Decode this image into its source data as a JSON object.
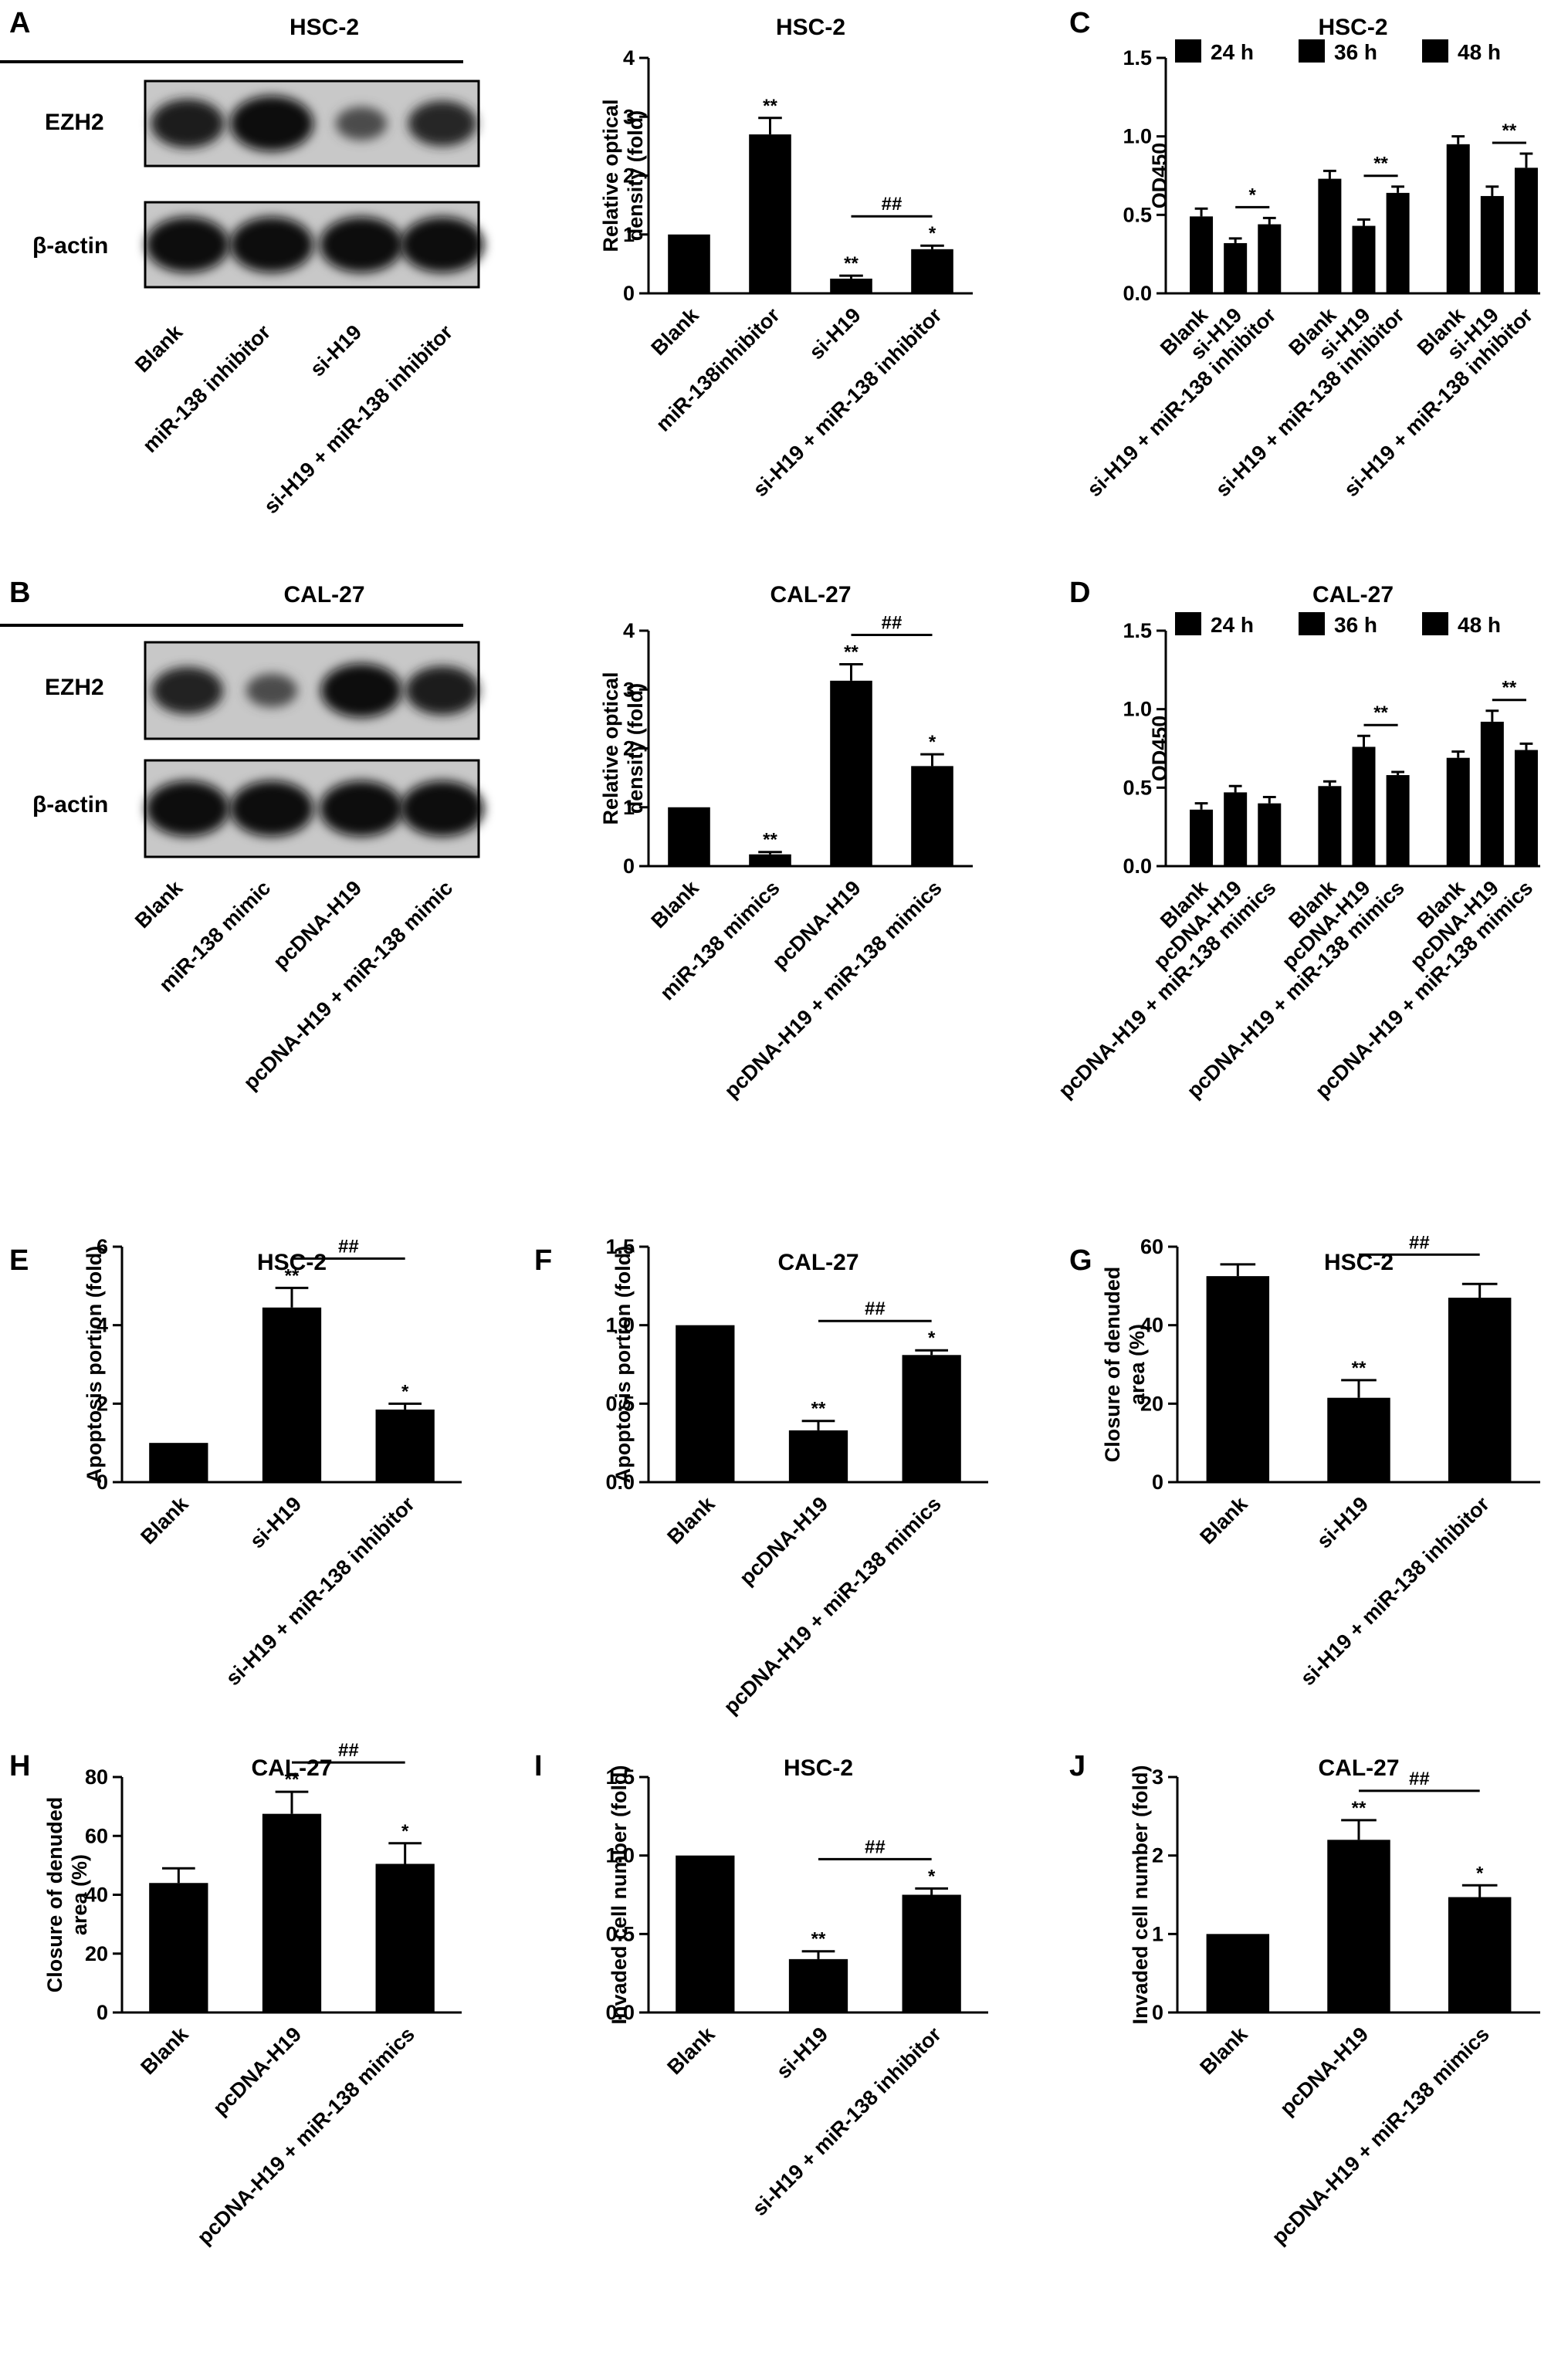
{
  "blots": [
    {
      "id": "A",
      "title": "HSC-2",
      "rows": [
        "EZH2",
        "β-actin"
      ],
      "lanes": [
        "Blank",
        "miR-138 inhibitor",
        "si-H19",
        "si-H19 + miR-138 inhibitor"
      ],
      "band_intensity": {
        "EZH2": [
          0.8,
          1.0,
          0.35,
          0.7
        ],
        "β-actin": [
          1,
          1,
          1,
          1
        ]
      }
    },
    {
      "id": "B",
      "title": "CAL-27",
      "rows": [
        "EZH2",
        "β-actin"
      ],
      "lanes": [
        "Blank",
        "miR-138 mimic",
        "pcDNA-H19",
        "pcDNA-H19 + miR-138 mimic"
      ],
      "band_intensity": {
        "EZH2": [
          0.75,
          0.35,
          0.95,
          0.8
        ],
        "β-actin": [
          1,
          1,
          1,
          1
        ]
      }
    }
  ],
  "chart_data": [
    {
      "id": "A-right",
      "type": "bar",
      "title": "HSC-2",
      "ylabel": "Relative optical density (fold)",
      "ylim": [
        0,
        4
      ],
      "yticks": [
        "0",
        "1",
        "2",
        "3",
        "4"
      ],
      "categories": [
        "Blank",
        "miR-138inhibitor",
        "si-H19",
        "si-H19 + miR-138 inhibitor"
      ],
      "values": [
        1.0,
        2.7,
        0.25,
        0.75
      ],
      "errors": [
        0,
        0.28,
        0.05,
        0.06
      ],
      "sig": [
        "",
        "**",
        "**",
        "*"
      ],
      "brackets": [
        {
          "from": 2,
          "to": 3,
          "label": "##"
        }
      ]
    },
    {
      "id": "C",
      "type": "bar",
      "title": "HSC-2",
      "ylabel": "OD450",
      "ylim": [
        0,
        1.5
      ],
      "yticks": [
        "0.0",
        "0.5",
        "1.0",
        "1.5"
      ],
      "legend": [
        "24 h",
        "36 h",
        "48 h"
      ],
      "categories": [
        "Blank",
        "si-H19",
        "si-H19 + miR-138 inhibitor",
        "Blank",
        "si-H19",
        "si-H19 + miR-138 inhibitor",
        "Blank",
        "si-H19",
        "si-H19 + miR-138 inhibitor"
      ],
      "group": [
        0,
        0,
        0,
        1,
        1,
        1,
        2,
        2,
        2
      ],
      "values": [
        0.49,
        0.32,
        0.44,
        0.73,
        0.43,
        0.64,
        0.95,
        0.62,
        0.8
      ],
      "errors": [
        0.05,
        0.03,
        0.04,
        0.05,
        0.04,
        0.04,
        0.05,
        0.06,
        0.09
      ],
      "sig": [
        "",
        "",
        "",
        "",
        "",
        "",
        "",
        "",
        ""
      ],
      "brackets": [
        {
          "from": 1,
          "to": 2,
          "label": "*"
        },
        {
          "from": 4,
          "to": 5,
          "label": "**"
        },
        {
          "from": 7,
          "to": 8,
          "label": "**"
        }
      ]
    },
    {
      "id": "B-right",
      "type": "bar",
      "title": "CAL-27",
      "ylabel": "Relative optical density (fold)",
      "ylim": [
        0,
        4
      ],
      "yticks": [
        "0",
        "1",
        "2",
        "3",
        "4"
      ],
      "categories": [
        "Blank",
        "miR-138 mimics",
        "pcDNA-H19",
        "pcDNA-H19 + miR-138 mimics"
      ],
      "values": [
        1.0,
        0.2,
        3.15,
        1.7
      ],
      "errors": [
        0,
        0.04,
        0.28,
        0.2
      ],
      "sig": [
        "",
        "**",
        "**",
        "*"
      ],
      "brackets": [
        {
          "from": 2,
          "to": 3,
          "label": "##"
        }
      ]
    },
    {
      "id": "D",
      "type": "bar",
      "title": "CAL-27",
      "ylabel": "OD450",
      "ylim": [
        0,
        1.5
      ],
      "yticks": [
        "0.0",
        "0.5",
        "1.0",
        "1.5"
      ],
      "legend": [
        "24 h",
        "36 h",
        "48 h"
      ],
      "categories": [
        "Blank",
        "pcDNA-H19",
        "pcDNA-H19 + miR-138 mimics",
        "Blank",
        "pcDNA-H19",
        "pcDNA-H19 + miR-138 mimics",
        "Blank",
        "pcDNA-H19",
        "pcDNA-H19 + miR-138 mimics"
      ],
      "group": [
        0,
        0,
        0,
        1,
        1,
        1,
        2,
        2,
        2
      ],
      "values": [
        0.36,
        0.47,
        0.4,
        0.51,
        0.76,
        0.58,
        0.69,
        0.92,
        0.74
      ],
      "errors": [
        0.04,
        0.04,
        0.04,
        0.03,
        0.07,
        0.02,
        0.04,
        0.07,
        0.04
      ],
      "sig": [
        "",
        "",
        "",
        "",
        "",
        "",
        "",
        "",
        ""
      ],
      "brackets": [
        {
          "from": 4,
          "to": 5,
          "label": "**"
        },
        {
          "from": 7,
          "to": 8,
          "label": "**"
        }
      ]
    },
    {
      "id": "E",
      "type": "bar",
      "title": "HSC-2",
      "ylabel": "Apoptosis portion (fold)",
      "ylim": [
        0,
        6
      ],
      "yticks": [
        "0",
        "2",
        "4",
        "6"
      ],
      "categories": [
        "Blank",
        "si-H19",
        "si-H19 + miR-138 inhibitor"
      ],
      "values": [
        1.0,
        4.45,
        1.85
      ],
      "errors": [
        0,
        0.5,
        0.15
      ],
      "sig": [
        "",
        "**",
        "*"
      ],
      "brackets": [
        {
          "from": 1,
          "to": 2,
          "label": "##"
        }
      ]
    },
    {
      "id": "F",
      "type": "bar",
      "title": "CAL-27",
      "ylabel": "Apoptosis portion (fold)",
      "ylim": [
        0,
        1.5
      ],
      "yticks": [
        "0.0",
        "0.5",
        "1.0",
        "1.5"
      ],
      "categories": [
        "Blank",
        "pcDNA-H19",
        "pcDNA-H19 + miR-138 mimics"
      ],
      "values": [
        1.0,
        0.33,
        0.81
      ],
      "errors": [
        0,
        0.06,
        0.03
      ],
      "sig": [
        "",
        "**",
        "*"
      ],
      "brackets": [
        {
          "from": 1,
          "to": 2,
          "label": "##"
        }
      ]
    },
    {
      "id": "G",
      "type": "bar",
      "title": "HSC-2",
      "ylabel": "Closure of denuded area (%)",
      "ylim": [
        0,
        60
      ],
      "yticks": [
        "0",
        "20",
        "40",
        "60"
      ],
      "categories": [
        "Blank",
        "si-H19",
        "si-H19 + miR-138 inhibitor"
      ],
      "values": [
        52.5,
        21.5,
        47.0
      ],
      "errors": [
        3.0,
        4.5,
        3.5
      ],
      "sig": [
        "",
        "**",
        ""
      ],
      "brackets": [
        {
          "from": 1,
          "to": 2,
          "label": "##"
        }
      ]
    },
    {
      "id": "H",
      "type": "bar",
      "title": "CAL-27",
      "ylabel": "Closure of denuded area (%)",
      "ylim": [
        0,
        80
      ],
      "yticks": [
        "0",
        "20",
        "40",
        "60",
        "80"
      ],
      "categories": [
        "Blank",
        "pcDNA-H19",
        "pcDNA-H19 + miR-138 mimics"
      ],
      "values": [
        44.0,
        67.5,
        50.5
      ],
      "errors": [
        5.0,
        7.5,
        7.0
      ],
      "sig": [
        "",
        "**",
        "*"
      ],
      "brackets": [
        {
          "from": 1,
          "to": 2,
          "label": "##"
        }
      ]
    },
    {
      "id": "I",
      "type": "bar",
      "title": "HSC-2",
      "ylabel": "Invaded cell number (fold)",
      "ylim": [
        0,
        1.5
      ],
      "yticks": [
        "0.0",
        "0.5",
        "1.0",
        "1.5"
      ],
      "categories": [
        "Blank",
        "si-H19",
        "si-H19 + miR-138 inhibitor"
      ],
      "values": [
        1.0,
        0.34,
        0.75
      ],
      "errors": [
        0,
        0.05,
        0.04
      ],
      "sig": [
        "",
        "**",
        "*"
      ],
      "brackets": [
        {
          "from": 1,
          "to": 2,
          "label": "##"
        }
      ]
    },
    {
      "id": "J",
      "type": "bar",
      "title": "CAL-27",
      "ylabel": "Invaded cell number (fold)",
      "ylim": [
        0,
        3
      ],
      "yticks": [
        "0",
        "1",
        "2",
        "3"
      ],
      "categories": [
        "Blank",
        "pcDNA-H19",
        "pcDNA-H19 + miR-138 mimics"
      ],
      "values": [
        1.0,
        2.2,
        1.47
      ],
      "errors": [
        0,
        0.25,
        0.15
      ],
      "sig": [
        "",
        "**",
        "*"
      ],
      "brackets": [
        {
          "from": 1,
          "to": 2,
          "label": "##"
        }
      ]
    }
  ],
  "panel_letters": [
    "A",
    "B",
    "C",
    "D",
    "E",
    "F",
    "G",
    "H",
    "I",
    "J"
  ],
  "colors": {
    "bar": "#000000",
    "background": "#ffffff"
  }
}
